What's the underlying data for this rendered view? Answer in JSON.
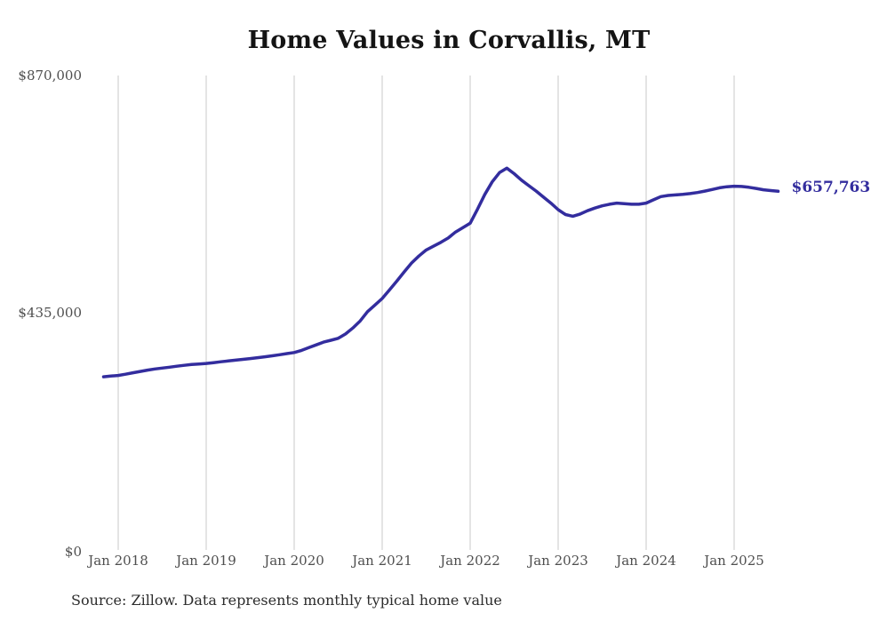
{
  "chart_data": {
    "type": "line",
    "title": "Home Values in Corvallis, MT",
    "xlabel": "",
    "ylabel": "",
    "ylim": [
      0,
      870000
    ],
    "grid": "vertical-only",
    "grid_color": "#c9c9c9",
    "line_color": "#332D9E",
    "y_ticks": [
      {
        "label": "$870,000",
        "value": 870000
      },
      {
        "label": "$435,000",
        "value": 435000
      },
      {
        "label": "$0",
        "value": 0
      }
    ],
    "x_tick_labels": [
      "Jan 2018",
      "Jan 2019",
      "Jan 2020",
      "Jan 2021",
      "Jan 2022",
      "Jan 2023",
      "Jan 2024",
      "Jan 2025"
    ],
    "end_label": "$657,763",
    "latest_value": 657763,
    "series": [
      {
        "name": "Monthly typical home value",
        "points": [
          [
            "2017-11",
            317500
          ],
          [
            "2017-12",
            318800
          ],
          [
            "2018-01",
            320000
          ],
          [
            "2018-02",
            322200
          ],
          [
            "2018-03",
            324800
          ],
          [
            "2018-04",
            327300
          ],
          [
            "2018-05",
            329800
          ],
          [
            "2018-06",
            331800
          ],
          [
            "2018-07",
            333500
          ],
          [
            "2018-08",
            335200
          ],
          [
            "2018-09",
            337000
          ],
          [
            "2018-10",
            338600
          ],
          [
            "2018-11",
            340000
          ],
          [
            "2018-12",
            341000
          ],
          [
            "2019-01",
            342000
          ],
          [
            "2019-02",
            343500
          ],
          [
            "2019-03",
            345000
          ],
          [
            "2019-04",
            346500
          ],
          [
            "2019-05",
            348000
          ],
          [
            "2019-06",
            349500
          ],
          [
            "2019-07",
            351000
          ],
          [
            "2019-08",
            352500
          ],
          [
            "2019-09",
            354200
          ],
          [
            "2019-10",
            356000
          ],
          [
            "2019-11",
            358000
          ],
          [
            "2019-12",
            360000
          ],
          [
            "2020-01",
            362000
          ],
          [
            "2020-02",
            366000
          ],
          [
            "2020-03",
            371000
          ],
          [
            "2020-04",
            376000
          ],
          [
            "2020-05",
            381000
          ],
          [
            "2020-06",
            384500
          ],
          [
            "2020-07",
            388000
          ],
          [
            "2020-08",
            396000
          ],
          [
            "2020-09",
            407000
          ],
          [
            "2020-10",
            420000
          ],
          [
            "2020-11",
            437000
          ],
          [
            "2020-12",
            449000
          ],
          [
            "2021-01",
            461000
          ],
          [
            "2021-02",
            477000
          ],
          [
            "2021-03",
            493000
          ],
          [
            "2021-04",
            510000
          ],
          [
            "2021-05",
            526000
          ],
          [
            "2021-06",
            539000
          ],
          [
            "2021-07",
            550000
          ],
          [
            "2021-08",
            557000
          ],
          [
            "2021-09",
            564000
          ],
          [
            "2021-10",
            572000
          ],
          [
            "2021-11",
            583000
          ],
          [
            "2021-12",
            591000
          ],
          [
            "2022-01",
            599000
          ],
          [
            "2022-02",
            625000
          ],
          [
            "2022-03",
            652000
          ],
          [
            "2022-04",
            675000
          ],
          [
            "2022-05",
            692000
          ],
          [
            "2022-06",
            700000
          ],
          [
            "2022-07",
            690000
          ],
          [
            "2022-08",
            678000
          ],
          [
            "2022-09",
            668000
          ],
          [
            "2022-10",
            658000
          ],
          [
            "2022-11",
            647000
          ],
          [
            "2022-12",
            636000
          ],
          [
            "2023-01",
            624000
          ],
          [
            "2023-02",
            615000
          ],
          [
            "2023-03",
            612000
          ],
          [
            "2023-04",
            616000
          ],
          [
            "2023-05",
            622000
          ],
          [
            "2023-06",
            627000
          ],
          [
            "2023-07",
            631000
          ],
          [
            "2023-08",
            634000
          ],
          [
            "2023-09",
            636000
          ],
          [
            "2023-10",
            635000
          ],
          [
            "2023-11",
            634000
          ],
          [
            "2023-12",
            634000
          ],
          [
            "2024-01",
            636000
          ],
          [
            "2024-02",
            642000
          ],
          [
            "2024-03",
            648000
          ],
          [
            "2024-04",
            650000
          ],
          [
            "2024-05",
            651000
          ],
          [
            "2024-06",
            652000
          ],
          [
            "2024-07",
            653500
          ],
          [
            "2024-08",
            655500
          ],
          [
            "2024-09",
            658000
          ],
          [
            "2024-10",
            661000
          ],
          [
            "2024-11",
            664000
          ],
          [
            "2024-12",
            666000
          ],
          [
            "2025-01",
            667000
          ],
          [
            "2025-02",
            666500
          ],
          [
            "2025-03",
            665000
          ],
          [
            "2025-04",
            663000
          ],
          [
            "2025-05",
            660500
          ],
          [
            "2025-06",
            659000
          ],
          [
            "2025-07",
            657763
          ]
        ]
      }
    ]
  },
  "source_note": "Source: Zillow. Data represents monthly typical home value"
}
